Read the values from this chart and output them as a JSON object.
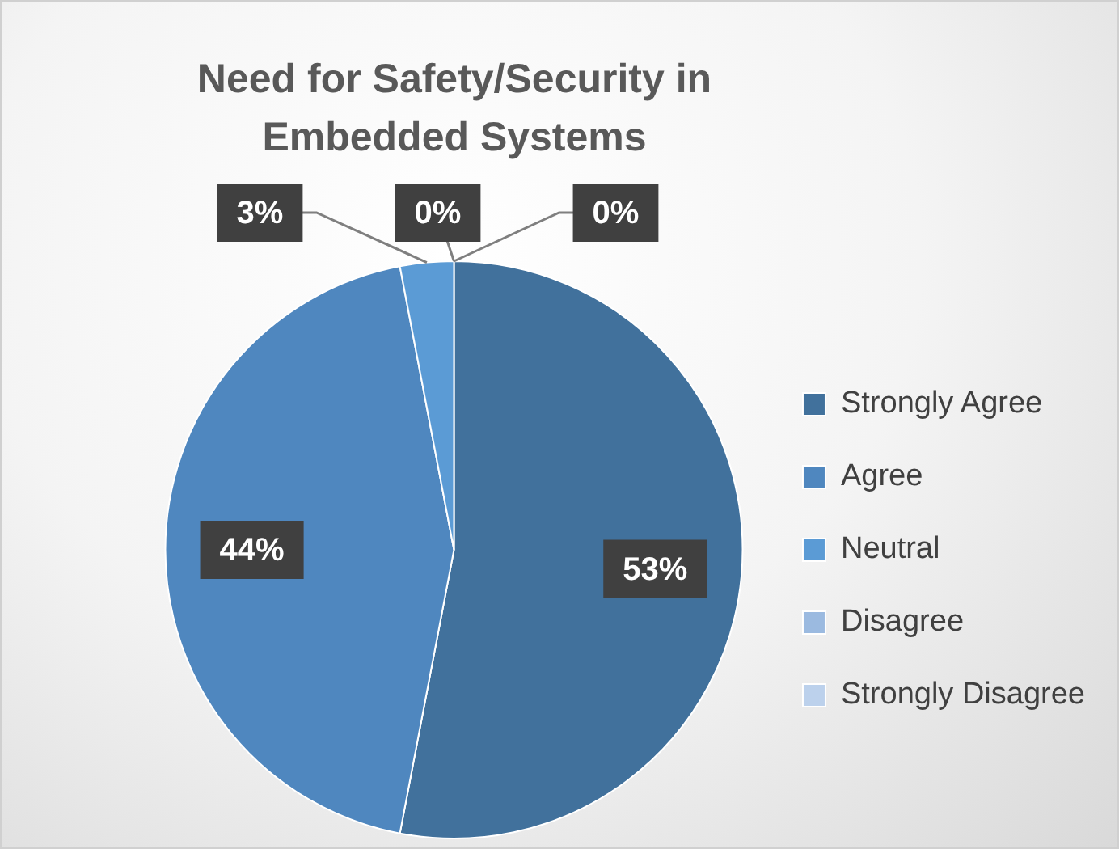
{
  "chart_data": {
    "type": "pie",
    "title": "Need for Safety/Security in Embedded Systems",
    "categories": [
      "Strongly Agree",
      "Agree",
      "Neutral",
      "Disagree",
      "Strongly Disagree"
    ],
    "values": [
      53,
      44,
      3,
      0,
      0
    ],
    "value_labels": [
      "53%",
      "44%",
      "3%",
      "0%",
      "0%"
    ],
    "colors": [
      "#41719c",
      "#4f87bf",
      "#5b9bd5",
      "#9bbae0",
      "#bcd1ec"
    ],
    "legend": "right"
  }
}
